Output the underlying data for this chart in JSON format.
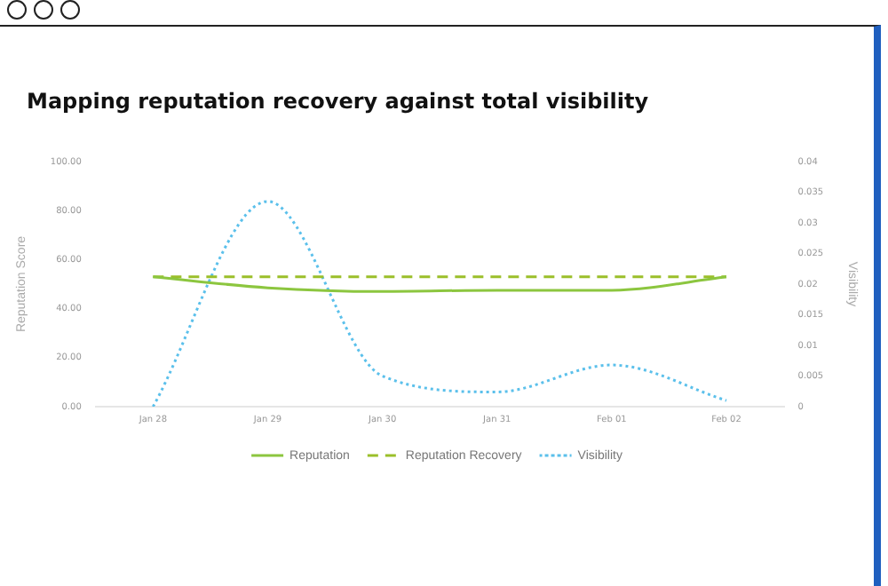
{
  "chart_data": {
    "type": "line",
    "title": "Mapping reputation recovery against total visibility",
    "categories": [
      "Jan 28",
      "Jan 29",
      "Jan 30",
      "Jan 31",
      "Feb 01",
      "Feb 02"
    ],
    "ylabel": "Reputation Score",
    "y2label": "Visibility",
    "ylim": [
      0,
      100
    ],
    "yticks": [
      {
        "value": 0,
        "label": "0.00"
      },
      {
        "value": 20,
        "label": "20.00"
      },
      {
        "value": 40,
        "label": "40.00"
      },
      {
        "value": 60,
        "label": "60.00"
      },
      {
        "value": 80,
        "label": "80.00"
      },
      {
        "value": 100,
        "label": "100.00"
      }
    ],
    "y2lim": [
      0,
      0.04
    ],
    "y2ticks": [
      0,
      0.005,
      0.01,
      0.015,
      0.02,
      0.025,
      0.03,
      0.035,
      0.04
    ],
    "series": [
      {
        "name": "Reputation",
        "color": "#8cc63f",
        "line_style": "solid",
        "values": [
          53,
          48.5,
          47,
          47.5,
          47.5,
          53
        ]
      },
      {
        "name": "Reputation Recovery",
        "color": "#9bbf2a",
        "line_style": "dashed",
        "values": [
          53,
          53,
          53,
          53,
          53,
          53
        ]
      },
      {
        "name": "Visibility",
        "color": "#5bc0eb",
        "line_style": "dotted",
        "axis": "y2",
        "values": [
          0,
          0.0335,
          0.005,
          0.0024,
          0.0068,
          0.001
        ]
      }
    ],
    "grid": false,
    "legend": "bottom",
    "marker": "none"
  }
}
